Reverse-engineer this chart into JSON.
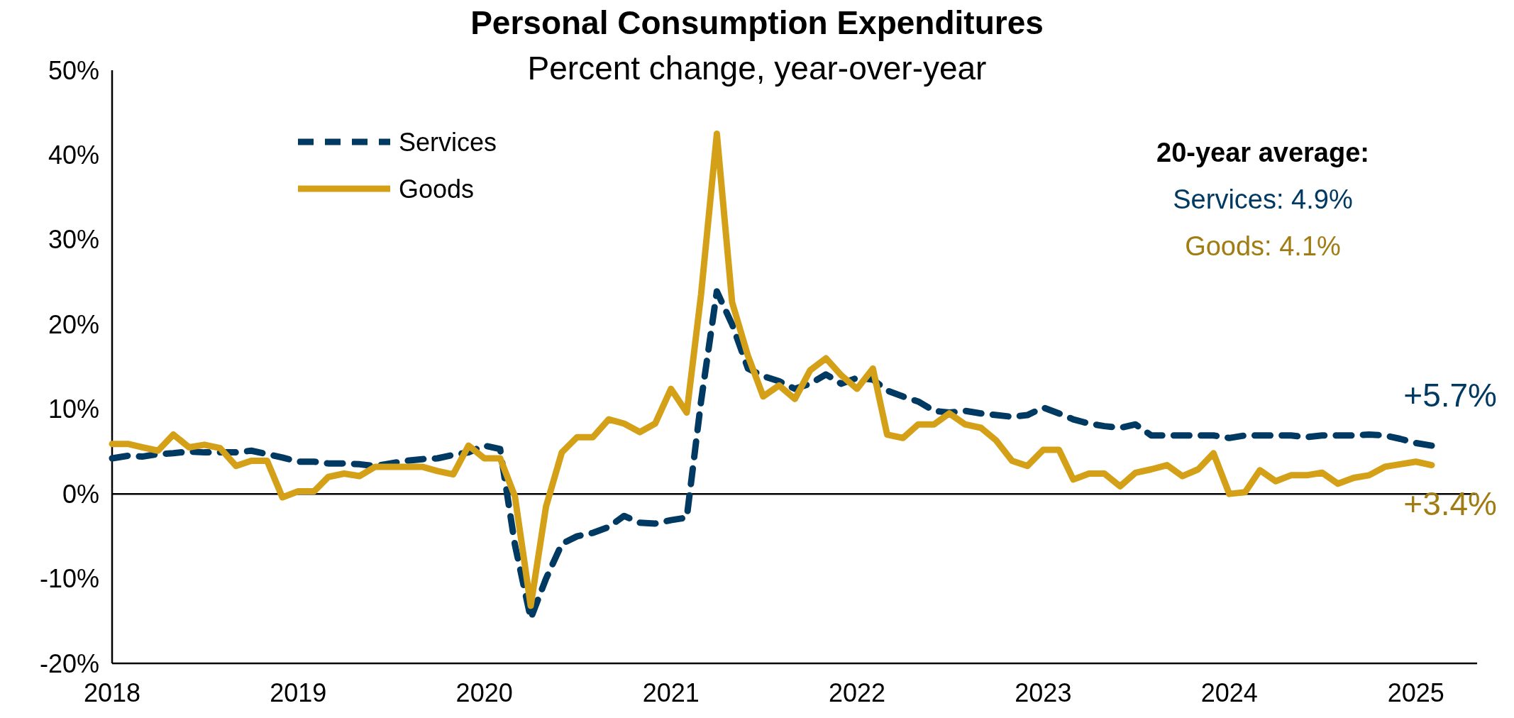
{
  "chart_data": {
    "type": "line",
    "title": "Personal Consumption Expenditures",
    "subtitle": "Percent change, year-over-year",
    "x": [
      "2018-01",
      "2018-02",
      "2018-03",
      "2018-04",
      "2018-05",
      "2018-06",
      "2018-07",
      "2018-08",
      "2018-09",
      "2018-10",
      "2018-11",
      "2018-12",
      "2019-01",
      "2019-02",
      "2019-03",
      "2019-04",
      "2019-05",
      "2019-06",
      "2019-07",
      "2019-08",
      "2019-09",
      "2019-10",
      "2019-11",
      "2019-12",
      "2020-01",
      "2020-02",
      "2020-03",
      "2020-04",
      "2020-05",
      "2020-06",
      "2020-07",
      "2020-08",
      "2020-09",
      "2020-10",
      "2020-11",
      "2020-12",
      "2021-01",
      "2021-02",
      "2021-03",
      "2021-04",
      "2021-05",
      "2021-06",
      "2021-07",
      "2021-08",
      "2021-09",
      "2021-10",
      "2021-11",
      "2021-12",
      "2022-01",
      "2022-02",
      "2022-03",
      "2022-04",
      "2022-05",
      "2022-06",
      "2022-07",
      "2022-08",
      "2022-09",
      "2022-10",
      "2022-11",
      "2022-12",
      "2023-01",
      "2023-02",
      "2023-03",
      "2023-04",
      "2023-05",
      "2023-06",
      "2023-07",
      "2023-08",
      "2023-09",
      "2023-10",
      "2023-11",
      "2023-12",
      "2024-01",
      "2024-02",
      "2024-03",
      "2024-04",
      "2024-05",
      "2024-06",
      "2024-07",
      "2024-08",
      "2024-09",
      "2024-10",
      "2024-11",
      "2024-12",
      "2025-01",
      "2025-02"
    ],
    "series": [
      {
        "name": "Services",
        "color": "#003a63",
        "line_style": "dashed",
        "values": [
          4.2,
          4.5,
          4.4,
          4.7,
          4.8,
          5.0,
          4.9,
          4.9,
          4.9,
          5.1,
          4.7,
          4.3,
          3.8,
          3.8,
          3.6,
          3.6,
          3.5,
          3.3,
          3.6,
          3.9,
          4.1,
          4.2,
          4.6,
          4.9,
          5.7,
          5.3,
          -6.0,
          -14.7,
          -10.0,
          -5.9,
          -5.0,
          -4.6,
          -3.9,
          -2.6,
          -3.4,
          -3.5,
          -3.1,
          -2.8,
          10.9,
          23.9,
          20.0,
          14.8,
          13.9,
          13.3,
          12.4,
          13.0,
          14.1,
          13.0,
          13.7,
          13.5,
          12.2,
          11.5,
          10.9,
          9.8,
          9.6,
          9.8,
          9.5,
          9.3,
          9.1,
          9.3,
          10.2,
          9.5,
          8.8,
          8.3,
          8.0,
          7.8,
          8.2,
          6.9,
          6.9,
          6.9,
          6.9,
          6.9,
          6.6,
          6.9,
          6.9,
          6.9,
          6.9,
          6.7,
          6.9,
          6.9,
          6.9,
          7.0,
          6.9,
          6.5,
          6.0,
          5.7
        ]
      },
      {
        "name": "Goods",
        "color": "#d4a017",
        "line_style": "solid",
        "values": [
          5.9,
          5.9,
          5.5,
          5.1,
          7.0,
          5.5,
          5.8,
          5.4,
          3.3,
          3.9,
          3.9,
          -0.4,
          0.3,
          0.3,
          2.0,
          2.4,
          2.1,
          3.2,
          3.2,
          3.2,
          3.2,
          2.7,
          2.3,
          5.7,
          4.2,
          4.2,
          -0.3,
          -13.2,
          -1.5,
          4.9,
          6.7,
          6.7,
          8.8,
          8.3,
          7.3,
          8.3,
          12.4,
          9.6,
          23.5,
          42.5,
          22.6,
          16.3,
          11.5,
          12.8,
          11.2,
          14.6,
          16.0,
          14.0,
          12.4,
          14.8,
          7.0,
          6.6,
          8.2,
          8.2,
          9.5,
          8.2,
          7.8,
          6.3,
          3.9,
          3.3,
          5.2,
          5.2,
          1.7,
          2.4,
          2.4,
          0.9,
          2.5,
          2.9,
          3.4,
          2.1,
          2.9,
          4.8,
          0.0,
          0.2,
          2.8,
          1.5,
          2.2,
          2.2,
          2.5,
          1.2,
          1.9,
          2.2,
          3.2,
          3.5,
          3.8,
          3.4
        ]
      }
    ],
    "xlim": [
      "2018-01",
      "2025-05"
    ],
    "xticks": [
      "2018",
      "2019",
      "2020",
      "2021",
      "2022",
      "2023",
      "2024",
      "2025"
    ],
    "ylim": [
      -20,
      50
    ],
    "yticks": [
      {
        "value": -20,
        "label": "-20%"
      },
      {
        "value": -10,
        "label": "-10%"
      },
      {
        "value": 0,
        "label": "0%"
      },
      {
        "value": 10,
        "label": "10%"
      },
      {
        "value": 20,
        "label": "20%"
      },
      {
        "value": 30,
        "label": "30%"
      },
      {
        "value": 40,
        "label": "40%"
      },
      {
        "value": 50,
        "label": "50%"
      }
    ],
    "grid": false,
    "legend": "top left",
    "ref_lines": [
      {
        "axis": "y",
        "value": 0
      }
    ],
    "annotations": [
      "20-year average:",
      "Services: 4.9%",
      "Goods: 4.1%",
      {
        "text": "+5.7%",
        "x": "2025-02",
        "y": 5.7
      },
      {
        "text": "+3.4%",
        "x": "2025-02",
        "y": 3.4
      }
    ]
  }
}
